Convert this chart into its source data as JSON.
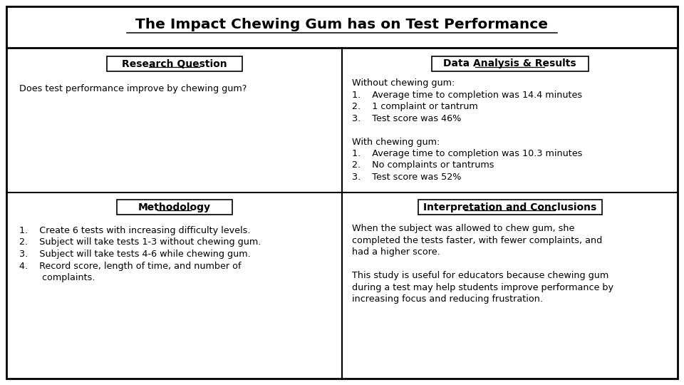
{
  "title": "The Impact Chewing Gum has on Test Performance",
  "bg_color": "#ffffff",
  "title_fontsize": 14.5,
  "heading_fontsize": 10,
  "body_fontsize": 9.2,
  "sections": {
    "research_question": {
      "heading": "Research Question",
      "body_lines": [
        "Does test performance improve by chewing gum?"
      ]
    },
    "data_analysis": {
      "heading": "Data Analysis & Results",
      "body_lines": [
        "Without chewing gum:",
        "1.    Average time to completion was 14.4 minutes",
        "2.    1 complaint or tantrum",
        "3.    Test score was 46%",
        "",
        "With chewing gum:",
        "1.    Average time to completion was 10.3 minutes",
        "2.    No complaints or tantrums",
        "3.    Test score was 52%"
      ]
    },
    "methodology": {
      "heading": "Methodology",
      "body_lines": [
        "1.    Create 6 tests with increasing difficulty levels.",
        "2.    Subject will take tests 1-3 without chewing gum.",
        "3.    Subject will take tests 4-6 while chewing gum.",
        "4.    Record score, length of time, and number of",
        "        complaints."
      ]
    },
    "interpretation": {
      "heading": "Interpretation and Conclusions",
      "body_lines": [
        "When the subject was allowed to chew gum, she",
        "completed the tests faster, with fewer complaints, and",
        "had a higher score.",
        "",
        "This study is useful for educators because chewing gum",
        "during a test may help students improve performance by",
        "increasing focus and reducing frustration."
      ]
    }
  }
}
